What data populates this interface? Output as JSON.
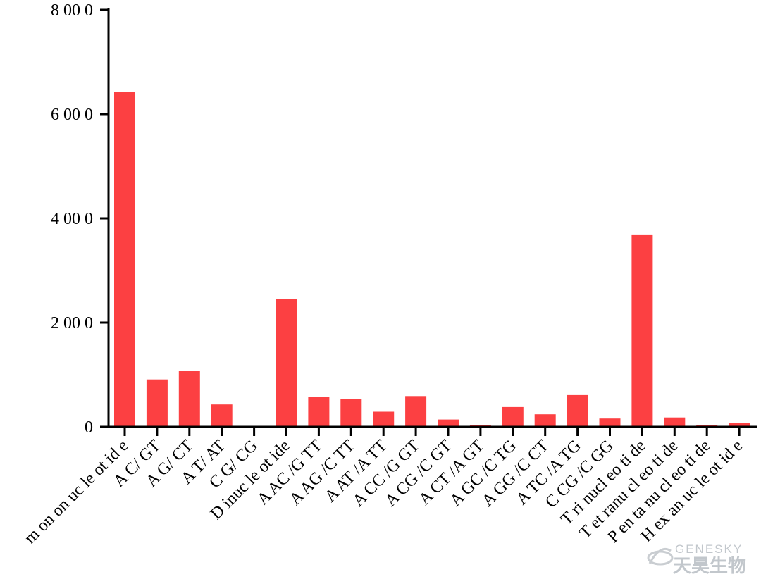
{
  "chart_data": {
    "type": "bar",
    "categories": [
      "m on on uc le ot id e",
      "A C/ GT",
      "A G/ CT",
      "A T/ AT",
      "C G/ CG",
      "D inuc le ot ide",
      "A AC /G TT",
      "A AG /C TT",
      "A AT /A TT",
      "A CC /G GT",
      "A CG /C GT",
      "A CT /A GT",
      "A GC /C TG",
      "A GG /C CT",
      "A TC /A TG",
      "C CG /C GG",
      "T ri nucl eo ti de",
      "T et ranu cl eo ti de",
      "P en ta nu cl eo ti de",
      "H ex an uc le ot id e"
    ],
    "values": [
      6430,
      910,
      1070,
      430,
      0,
      2450,
      570,
      540,
      290,
      590,
      140,
      40,
      380,
      240,
      610,
      160,
      3690,
      180,
      40,
      70
    ],
    "ylim": [
      0,
      8000
    ],
    "yticks": [
      0,
      2000,
      4000,
      6000,
      8000
    ],
    "ytick_labels": [
      "0",
      "2 00 0",
      "4 00 0",
      "6 00 0",
      "8 00 0"
    ],
    "title": "",
    "xlabel": "",
    "ylabel": "",
    "bar_color": "#fc4042",
    "grid": false,
    "legend": "none"
  },
  "watermark": {
    "en": "GENESKY",
    "cn": "天昊生物"
  }
}
